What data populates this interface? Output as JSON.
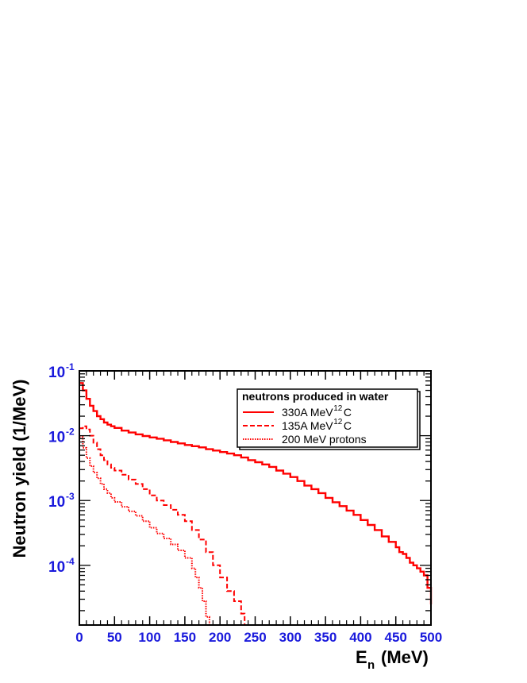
{
  "chart_data": {
    "type": "line",
    "style": "step-histogram",
    "xlabel": "E",
    "xlabel_subscript": "n",
    "xlabel_suffix": "(MeV)",
    "ylabel": "Neutron yield (1/MeV)",
    "xlim": [
      0,
      500
    ],
    "ylim": [
      1.2e-05,
      0.1
    ],
    "yscale": "log",
    "grid": false,
    "legend_position": "top-right",
    "x_ticks": [
      "0",
      "50",
      "100",
      "150",
      "200",
      "250",
      "300",
      "350",
      "400",
      "450",
      "500"
    ],
    "y_ticks": [
      {
        "base": "10",
        "exp": "-1",
        "value": 0.1
      },
      {
        "base": "10",
        "exp": "-2",
        "value": 0.01
      },
      {
        "base": "10",
        "exp": "-3",
        "value": 0.001
      },
      {
        "base": "10",
        "exp": "-4",
        "value": 0.0001
      }
    ],
    "legend": {
      "header": "neutrons produced in water",
      "entries": [
        {
          "label": "330A MeV ",
          "sup": "12",
          "suffix": "C",
          "color": "#ff0000",
          "dash": "solid"
        },
        {
          "label": "135A MeV ",
          "sup": "12",
          "suffix": "C",
          "color": "#ff0000",
          "dash": "dashed"
        },
        {
          "label": "200 MeV protons",
          "sup": "",
          "suffix": "",
          "color": "#ff0000",
          "dash": "dotted"
        }
      ]
    },
    "series": [
      {
        "name": "330A MeV 12C",
        "color": "#ff0000",
        "dash": "solid",
        "x": [
          0,
          5,
          10,
          15,
          20,
          25,
          30,
          35,
          40,
          45,
          50,
          60,
          70,
          80,
          90,
          100,
          110,
          120,
          130,
          140,
          150,
          160,
          170,
          180,
          190,
          200,
          210,
          220,
          230,
          240,
          250,
          260,
          270,
          280,
          290,
          300,
          310,
          320,
          330,
          340,
          350,
          360,
          370,
          380,
          390,
          400,
          410,
          420,
          430,
          440,
          450,
          455,
          460,
          465,
          470,
          475,
          480,
          485,
          490,
          495,
          500
        ],
        "y": [
          0.065,
          0.05,
          0.037,
          0.029,
          0.024,
          0.02,
          0.018,
          0.016,
          0.0148,
          0.014,
          0.0132,
          0.012,
          0.0112,
          0.0105,
          0.0099,
          0.0094,
          0.009,
          0.0085,
          0.008,
          0.0076,
          0.0072,
          0.0069,
          0.0066,
          0.0062,
          0.0059,
          0.0056,
          0.0053,
          0.005,
          0.0046,
          0.0042,
          0.0039,
          0.0036,
          0.0033,
          0.0029,
          0.0026,
          0.0023,
          0.002,
          0.0017,
          0.0015,
          0.0013,
          0.0011,
          0.00094,
          0.00082,
          0.0007,
          0.0006,
          0.0005,
          0.00042,
          0.00035,
          0.00028,
          0.00023,
          0.00019,
          0.00016,
          0.00015,
          0.00013,
          0.00011,
          0.0001,
          9e-05,
          8e-05,
          7e-05,
          4.5e-05,
          2.5e-05
        ]
      },
      {
        "name": "135A MeV 12C",
        "color": "#ff0000",
        "dash": "dashed",
        "x": [
          0,
          5,
          10,
          15,
          20,
          25,
          30,
          35,
          40,
          45,
          50,
          60,
          70,
          80,
          90,
          100,
          110,
          120,
          130,
          140,
          150,
          160,
          170,
          180,
          190,
          200,
          210,
          220,
          230,
          235
        ],
        "y": [
          0.013,
          0.014,
          0.0125,
          0.01,
          0.0078,
          0.0062,
          0.005,
          0.0042,
          0.0036,
          0.0032,
          0.0029,
          0.0025,
          0.0021,
          0.0018,
          0.0015,
          0.0012,
          0.001,
          0.00085,
          0.00072,
          0.0006,
          0.00048,
          0.00035,
          0.00025,
          0.00016,
          0.0001,
          6.5e-05,
          4e-05,
          2.8e-05,
          1.8e-05,
          1.2e-05
        ]
      },
      {
        "name": "200 MeV protons",
        "color": "#ff0000",
        "dash": "dotted",
        "x": [
          0,
          5,
          10,
          15,
          20,
          25,
          30,
          35,
          40,
          45,
          50,
          60,
          70,
          80,
          90,
          100,
          110,
          120,
          130,
          140,
          150,
          160,
          165,
          170,
          175,
          180,
          185
        ],
        "y": [
          0.0095,
          0.0065,
          0.0045,
          0.0034,
          0.0027,
          0.0022,
          0.0018,
          0.0015,
          0.0013,
          0.0011,
          0.00095,
          0.0008,
          0.00068,
          0.00058,
          0.00048,
          0.00038,
          0.00031,
          0.00026,
          0.00021,
          0.00017,
          0.00013,
          9e-05,
          6.5e-05,
          4.5e-05,
          2.8e-05,
          1.6e-05,
          1.2e-05
        ]
      }
    ]
  }
}
